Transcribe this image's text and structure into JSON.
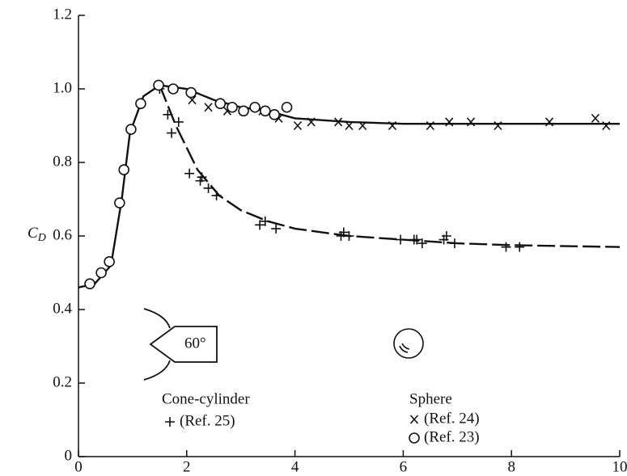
{
  "chart_data": {
    "type": "scatter",
    "ylabel": "C",
    "ylabel_subscript": "D",
    "xlim": [
      0,
      10
    ],
    "xticks": [
      0,
      2,
      4,
      6,
      8,
      10
    ],
    "ylim": [
      0,
      1.2
    ],
    "yticks": [
      0,
      0.2,
      0.4,
      0.6,
      0.8,
      {
        "value": 1,
        "label": "1.0"
      },
      1.2
    ],
    "grid": false,
    "annotations": {
      "cone_angle": "60°",
      "cone_group": "Cone-cylinder",
      "sphere_group": "Sphere"
    },
    "series": [
      {
        "name": "(Ref. 25)",
        "marker": "plus",
        "color": "#111111",
        "x": [
          1.5,
          1.65,
          1.72,
          1.85,
          2.05,
          2.25,
          2.28,
          2.4,
          2.55,
          3.35,
          3.45,
          3.65,
          4.85,
          4.9,
          5.0,
          5.95,
          6.2,
          6.25,
          6.35,
          6.75,
          6.8,
          6.95,
          7.9,
          8.15
        ],
        "values": [
          1.0,
          0.93,
          0.88,
          0.91,
          0.77,
          0.75,
          0.76,
          0.73,
          0.71,
          0.63,
          0.64,
          0.62,
          0.6,
          0.61,
          0.6,
          0.59,
          0.59,
          0.59,
          0.58,
          0.59,
          0.6,
          0.58,
          0.57,
          0.57
        ]
      },
      {
        "name": "(Ref. 24)",
        "marker": "x",
        "color": "#111111",
        "x": [
          2.1,
          2.4,
          2.75,
          3.05,
          3.4,
          3.7,
          4.05,
          4.3,
          4.8,
          5.0,
          5.25,
          5.8,
          6.5,
          6.85,
          7.25,
          7.75,
          8.7,
          9.55,
          9.75
        ],
        "values": [
          0.97,
          0.95,
          0.94,
          0.94,
          0.94,
          0.92,
          0.9,
          0.91,
          0.91,
          0.9,
          0.9,
          0.9,
          0.9,
          0.91,
          0.91,
          0.9,
          0.91,
          0.92,
          0.9
        ]
      },
      {
        "name": "(Ref. 23)",
        "marker": "circle",
        "color": "#111111",
        "x": [
          0.21,
          0.42,
          0.57,
          0.76,
          0.84,
          0.97,
          1.15,
          1.48,
          1.75,
          2.08,
          2.62,
          2.84,
          3.05,
          3.26,
          3.45,
          3.62,
          3.85
        ],
        "values": [
          0.47,
          0.5,
          0.53,
          0.69,
          0.78,
          0.89,
          0.96,
          1.01,
          1.0,
          0.99,
          0.96,
          0.95,
          0.94,
          0.95,
          0.94,
          0.93,
          0.95
        ]
      }
    ],
    "curves": [
      {
        "dashed": false,
        "color": "#111111",
        "x": [
          0,
          0.3,
          0.6,
          0.8,
          0.95,
          1.2,
          1.5,
          2,
          2.5,
          3,
          3.5,
          4,
          5,
          6,
          7,
          8,
          10
        ],
        "values": [
          0.46,
          0.47,
          0.52,
          0.7,
          0.88,
          0.98,
          1.01,
          1.0,
          0.97,
          0.95,
          0.94,
          0.92,
          0.91,
          0.905,
          0.905,
          0.905,
          0.905
        ]
      },
      {
        "dashed": true,
        "color": "#111111",
        "x": [
          1.5,
          1.8,
          2.2,
          2.6,
          3,
          3.5,
          4,
          5,
          6,
          7,
          8,
          10
        ],
        "values": [
          1.01,
          0.9,
          0.78,
          0.71,
          0.67,
          0.64,
          0.62,
          0.6,
          0.59,
          0.58,
          0.575,
          0.57
        ]
      }
    ]
  }
}
